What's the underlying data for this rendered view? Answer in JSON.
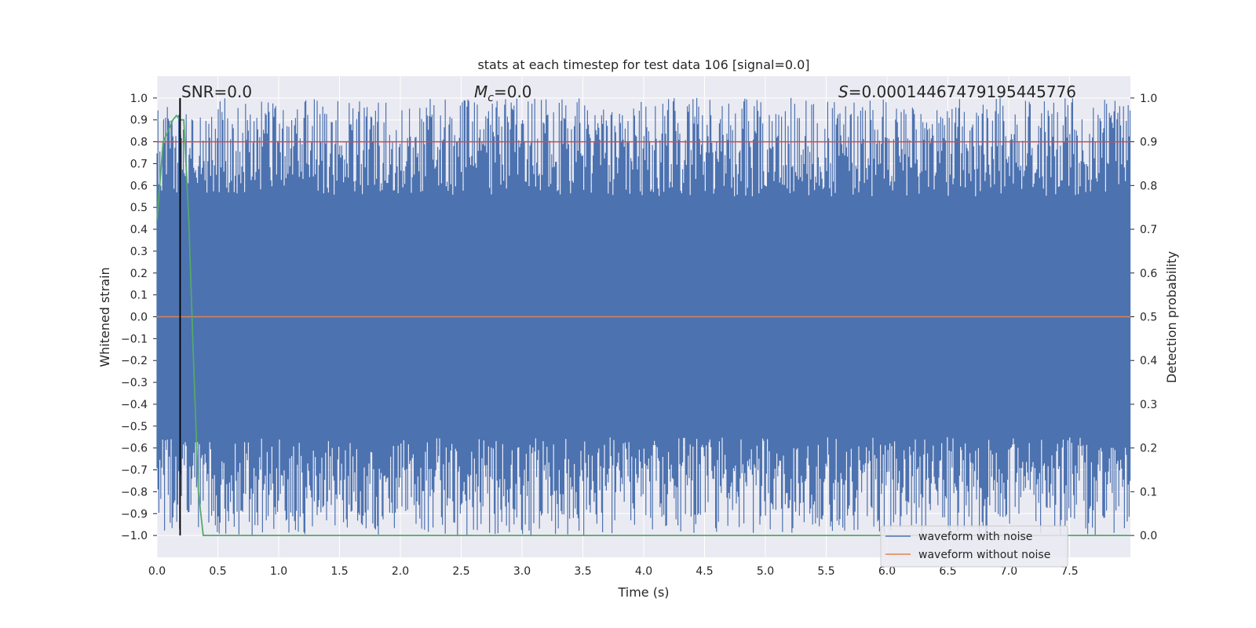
{
  "chart_data": {
    "type": "line",
    "title": "stats at each timestep for test data 106 [signal=0.0]",
    "xlabel": "Time (s)",
    "ylabel": "Whitened strain",
    "y2label": "Detection probability",
    "xlim": [
      0.0,
      8.0
    ],
    "ylim": [
      -1.1,
      1.1
    ],
    "y2lim": [
      -0.05,
      1.05
    ],
    "x_ticks": [
      "0.0",
      "0.5",
      "1.0",
      "1.5",
      "2.0",
      "2.5",
      "3.0",
      "3.5",
      "4.0",
      "4.5",
      "5.0",
      "5.5",
      "6.0",
      "6.5",
      "7.0",
      "7.5"
    ],
    "y_ticks": [
      "1.0",
      "0.9",
      "0.8",
      "0.7",
      "0.6",
      "0.5",
      "0.4",
      "0.3",
      "0.2",
      "0.1",
      "0.0",
      "−0.1",
      "−0.2",
      "−0.3",
      "−0.4",
      "−0.5",
      "−0.6",
      "−0.7",
      "−0.8",
      "−0.9",
      "−1.0"
    ],
    "y2_ticks": [
      "1.0",
      "0.9",
      "0.8",
      "0.7",
      "0.6",
      "0.5",
      "0.4",
      "0.3",
      "0.2",
      "0.1",
      "0.0"
    ],
    "grid": true,
    "legend_position": "lower-right",
    "annotations": {
      "snr": "SNR=0.0",
      "mc_symbol": "M",
      "mc_subscript": "c",
      "mc_value": "=0.0",
      "s_symbol": "S",
      "s_value": "=0.00014467479195445776"
    },
    "series": [
      {
        "name": "waveform with noise",
        "color": "#4c72b0",
        "description": "dense whitened noise filling range",
        "y_range": [
          -1.0,
          1.0
        ]
      },
      {
        "name": "waveform without noise",
        "color": "#dd8452",
        "x": [
          0.0,
          8.0
        ],
        "y": [
          0.0,
          0.0
        ]
      },
      {
        "axis": "right",
        "color": "#55a868",
        "x": [
          0.0,
          0.05,
          0.1,
          0.13,
          0.16,
          0.19,
          0.22,
          0.26,
          0.3,
          0.34,
          0.38,
          0.42,
          8.0
        ],
        "y": [
          0.72,
          0.9,
          0.93,
          0.95,
          0.96,
          0.95,
          0.95,
          0.73,
          0.4,
          0.1,
          0.0,
          0.0,
          0.0
        ]
      }
    ],
    "hlines": [
      {
        "axis": "right",
        "y": 0.9,
        "color": "#c44e52"
      }
    ],
    "vlines": [
      {
        "x": 0.19,
        "color": "#000000"
      }
    ]
  }
}
